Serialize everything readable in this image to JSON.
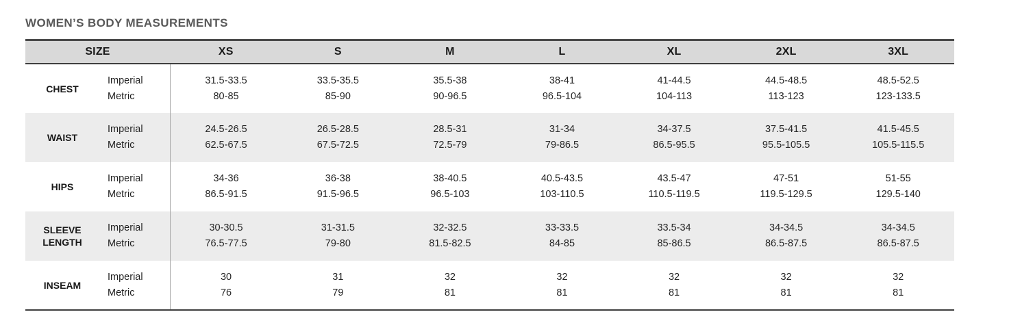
{
  "title": "WOMEN’S BODY MEASUREMENTS",
  "chart_data": {
    "type": "table",
    "title": "WOMEN’S BODY MEASUREMENTS",
    "corner_label": "SIZE",
    "size_columns": [
      "XS",
      "S",
      "M",
      "L",
      "XL",
      "2XL",
      "3XL"
    ],
    "unit_labels": [
      "Imperial",
      "Metric"
    ],
    "rows": [
      {
        "label": "CHEST",
        "imperial": [
          "31.5-33.5",
          "33.5-35.5",
          "35.5-38",
          "38-41",
          "41-44.5",
          "44.5-48.5",
          "48.5-52.5"
        ],
        "metric": [
          "80-85",
          "85-90",
          "90-96.5",
          "96.5-104",
          "104-113",
          "113-123",
          "123-133.5"
        ]
      },
      {
        "label": "WAIST",
        "imperial": [
          "24.5-26.5",
          "26.5-28.5",
          "28.5-31",
          "31-34",
          "34-37.5",
          "37.5-41.5",
          "41.5-45.5"
        ],
        "metric": [
          "62.5-67.5",
          "67.5-72.5",
          "72.5-79",
          "79-86.5",
          "86.5-95.5",
          "95.5-105.5",
          "105.5-115.5"
        ]
      },
      {
        "label": "HIPS",
        "imperial": [
          "34-36",
          "36-38",
          "38-40.5",
          "40.5-43.5",
          "43.5-47",
          "47-51",
          "51-55"
        ],
        "metric": [
          "86.5-91.5",
          "91.5-96.5",
          "96.5-103",
          "103-110.5",
          "110.5-119.5",
          "119.5-129.5",
          "129.5-140"
        ]
      },
      {
        "label": "SLEEVE LENGTH",
        "imperial": [
          "30-30.5",
          "31-31.5",
          "32-32.5",
          "33-33.5",
          "33.5-34",
          "34-34.5",
          "34-34.5"
        ],
        "metric": [
          "76.5-77.5",
          "79-80",
          "81.5-82.5",
          "84-85",
          "85-86.5",
          "86.5-87.5",
          "86.5-87.5"
        ]
      },
      {
        "label": "INSEAM",
        "imperial": [
          "30",
          "31",
          "32",
          "32",
          "32",
          "32",
          "32"
        ],
        "metric": [
          "76",
          "79",
          "81",
          "81",
          "81",
          "81",
          "81"
        ]
      }
    ]
  },
  "colors": {
    "header_bg": "#d9d9d9",
    "stripe_bg": "#ececec",
    "border_dark": "#3f3f3f",
    "column_divider": "#a6a6a6",
    "title_color": "#595959"
  }
}
